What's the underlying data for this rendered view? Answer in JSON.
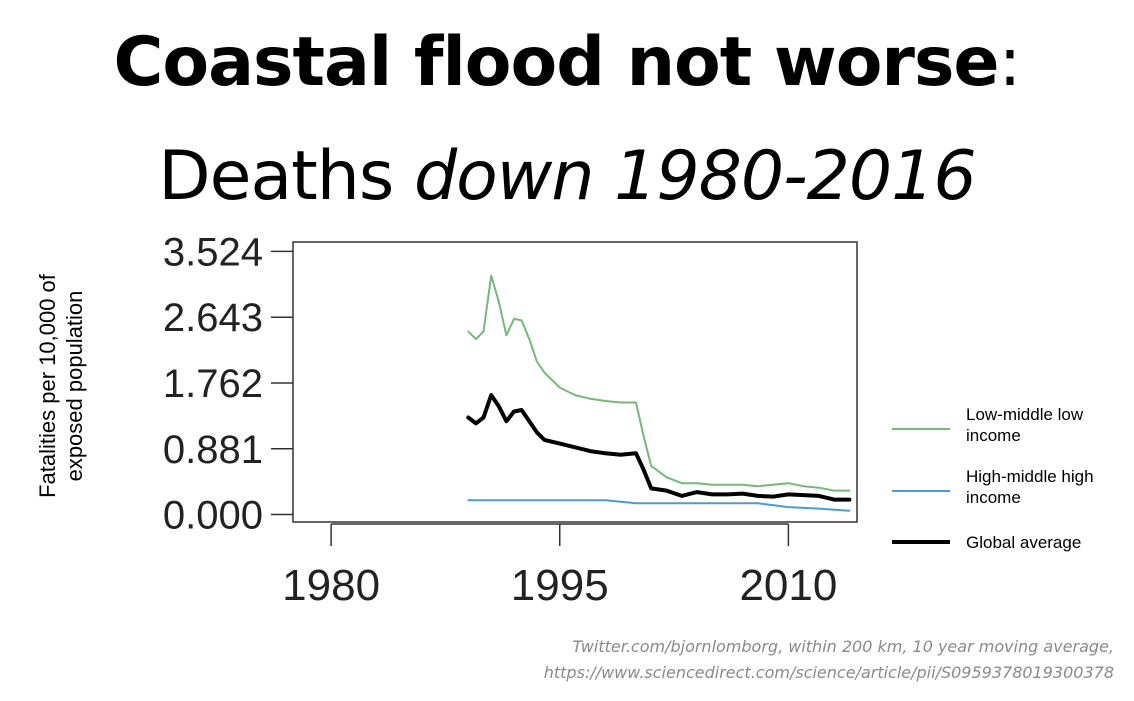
{
  "title": {
    "line1_bold": "Coastal flood not worse",
    "line1_colon": ":",
    "line2_plain": "Deaths ",
    "line2_italic": "down 1980-2016"
  },
  "source": {
    "line1": "Twitter.com/bjornlomborg, within 200 km, 10 year moving average,",
    "line2": "https://www.sciencedirect.com/science/article/pii/S0959378019300378"
  },
  "colors": {
    "low_middle": "#76b87a",
    "high_middle": "#4d9ad4",
    "global": "#000000",
    "axis": "#333333"
  },
  "chart_data": {
    "type": "line",
    "title": "",
    "xlabel": "",
    "ylabel_line1": "Fatalities per 10,000 of",
    "ylabel_line2": "exposed population",
    "xlim": [
      1977.5,
      2014.5
    ],
    "ylim": [
      -0.1,
      3.65
    ],
    "x_ticks": [
      1980,
      1995,
      2010
    ],
    "y_ticks": [
      0.0,
      0.881,
      1.762,
      2.643,
      3.524
    ],
    "y_tick_labels": [
      "0.000",
      "0.881",
      "1.762",
      "2.643",
      "3.524"
    ],
    "legend_position": "right",
    "series": [
      {
        "name": "Low-middle low income",
        "color": "#76b87a",
        "width": 2,
        "x": [
          1989,
          1989.5,
          1990,
          1990.5,
          1991,
          1991.5,
          1992,
          1992.5,
          1993,
          1993.5,
          1994,
          1995,
          1996,
          1997,
          1998,
          1999,
          2000,
          2000.5,
          2001,
          2002,
          2003,
          2004,
          2005,
          2006,
          2007,
          2008,
          2009,
          2010,
          2011,
          2012,
          2013,
          2014
        ],
        "y": [
          2.45,
          2.35,
          2.45,
          3.2,
          2.85,
          2.4,
          2.62,
          2.6,
          2.35,
          2.05,
          1.9,
          1.7,
          1.6,
          1.55,
          1.52,
          1.5,
          1.5,
          1.05,
          0.65,
          0.5,
          0.42,
          0.42,
          0.4,
          0.4,
          0.4,
          0.38,
          0.4,
          0.42,
          0.38,
          0.36,
          0.32,
          0.32
        ]
      },
      {
        "name": "High-middle high income",
        "color": "#4d9ad4",
        "width": 2,
        "x": [
          1989,
          1992,
          1995,
          1998,
          2000,
          2002,
          2004,
          2006,
          2008,
          2010,
          2012,
          2014
        ],
        "y": [
          0.19,
          0.19,
          0.19,
          0.19,
          0.15,
          0.15,
          0.15,
          0.15,
          0.15,
          0.1,
          0.08,
          0.05
        ]
      },
      {
        "name": "Global average",
        "color": "#000000",
        "width": 4,
        "x": [
          1989,
          1989.5,
          1990,
          1990.5,
          1991,
          1991.5,
          1992,
          1992.5,
          1993,
          1993.5,
          1994,
          1995,
          1996,
          1997,
          1998,
          1999,
          2000,
          2000.5,
          2001,
          2002,
          2003,
          2004,
          2005,
          2006,
          2007,
          2008,
          2009,
          2010,
          2011,
          2012,
          2013,
          2014
        ],
        "y": [
          1.3,
          1.22,
          1.3,
          1.6,
          1.45,
          1.25,
          1.38,
          1.4,
          1.25,
          1.1,
          1.0,
          0.95,
          0.9,
          0.85,
          0.82,
          0.8,
          0.82,
          0.6,
          0.35,
          0.32,
          0.25,
          0.3,
          0.27,
          0.27,
          0.28,
          0.25,
          0.24,
          0.27,
          0.26,
          0.25,
          0.2,
          0.2
        ]
      }
    ]
  }
}
